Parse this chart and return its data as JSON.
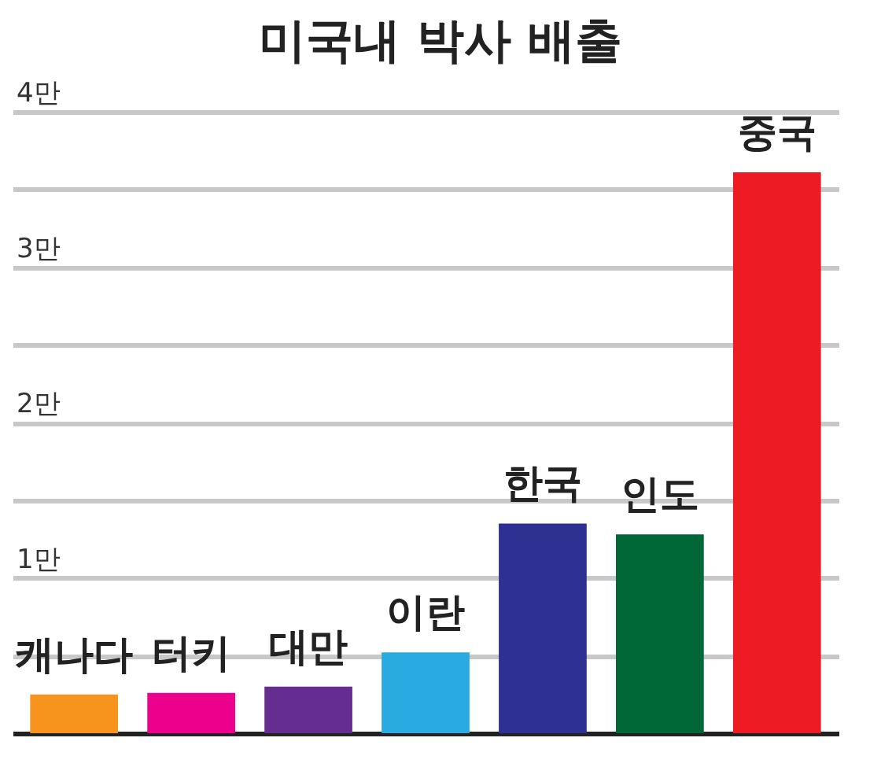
{
  "chart_data": {
    "type": "bar",
    "title": "미국내 박사 배출",
    "categories": [
      "캐나다",
      "터키",
      "대만",
      "이란",
      "한국",
      "인도",
      "중국"
    ],
    "values": [
      0.25,
      0.26,
      0.3,
      0.52,
      1.35,
      1.28,
      3.61
    ],
    "colors": [
      "#f7941d",
      "#ec008c",
      "#662d91",
      "#29abe2",
      "#2e3192",
      "#006837",
      "#ed1c24"
    ],
    "ylim": [
      0,
      4
    ],
    "yticks": [
      {
        "value": 0.5,
        "label": null
      },
      {
        "value": 1,
        "label": "1만"
      },
      {
        "value": 1.5,
        "label": null
      },
      {
        "value": 2,
        "label": "2만"
      },
      {
        "value": 2.5,
        "label": null
      },
      {
        "value": 3,
        "label": "3만"
      },
      {
        "value": 3.5,
        "label": null
      },
      {
        "value": 4,
        "label": "4만"
      }
    ],
    "grid": true
  }
}
